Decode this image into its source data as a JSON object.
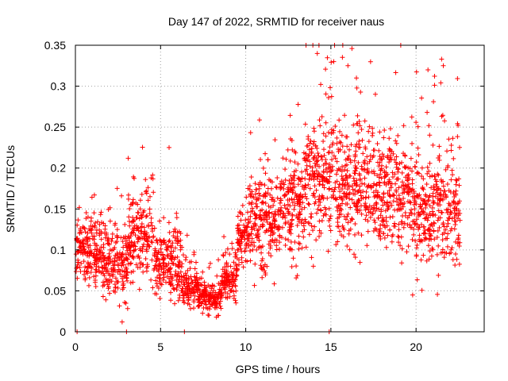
{
  "chart_data": {
    "type": "scatter",
    "title": "Day 147 of 2022, SRMTID for receiver naus",
    "xlabel": "GPS time / hours",
    "ylabel": "SRMTID / TECUs",
    "xlim": [
      0,
      24
    ],
    "ylim": [
      0,
      0.35
    ],
    "x_ticks": [
      0,
      5,
      10,
      15,
      20
    ],
    "x_tick_labels": [
      "0",
      "5",
      "10",
      "15",
      "20"
    ],
    "y_ticks": [
      0,
      0.05,
      0.1,
      0.15,
      0.2,
      0.25,
      0.3,
      0.35
    ],
    "y_tick_labels": [
      "0",
      "0.05",
      "0.1",
      "0.15",
      "0.2",
      "0.25",
      "0.3",
      "0.35"
    ],
    "grid": true,
    "marker": "+",
    "color": "#ff0000",
    "series": [
      {
        "name": "SRMTID",
        "segments": [
          {
            "t_start": 0.0,
            "t_end": 1.6,
            "mean": 0.1,
            "spread": 0.025
          },
          {
            "t_start": 1.6,
            "t_end": 3.1,
            "mean": 0.085,
            "spread": 0.028
          },
          {
            "t_start": 3.1,
            "t_end": 4.6,
            "mean": 0.12,
            "spread": 0.035
          },
          {
            "t_start": 4.6,
            "t_end": 6.2,
            "mean": 0.085,
            "spread": 0.03
          },
          {
            "t_start": 6.2,
            "t_end": 7.2,
            "mean": 0.055,
            "spread": 0.015
          },
          {
            "t_start": 7.2,
            "t_end": 8.6,
            "mean": 0.042,
            "spread": 0.012
          },
          {
            "t_start": 8.6,
            "t_end": 9.5,
            "mean": 0.06,
            "spread": 0.018
          },
          {
            "t_start": 9.5,
            "t_end": 10.2,
            "mean": 0.115,
            "spread": 0.02
          },
          {
            "t_start": 10.2,
            "t_end": 12.0,
            "mean": 0.135,
            "spread": 0.04
          },
          {
            "t_start": 12.0,
            "t_end": 13.5,
            "mean": 0.16,
            "spread": 0.045
          },
          {
            "t_start": 13.5,
            "t_end": 15.5,
            "mean": 0.185,
            "spread": 0.05
          },
          {
            "t_start": 15.5,
            "t_end": 17.5,
            "mean": 0.175,
            "spread": 0.05
          },
          {
            "t_start": 17.5,
            "t_end": 20.0,
            "mean": 0.165,
            "spread": 0.045
          },
          {
            "t_start": 20.0,
            "t_end": 22.6,
            "mean": 0.15,
            "spread": 0.05
          }
        ],
        "notable_points": [
          {
            "x": 14.3,
            "y": 0.35
          },
          {
            "x": 14.2,
            "y": 0.34
          },
          {
            "x": 16.0,
            "y": 0.325
          },
          {
            "x": 21.5,
            "y": 0.333
          },
          {
            "x": 21.6,
            "y": 0.325
          },
          {
            "x": 20.7,
            "y": 0.32
          },
          {
            "x": 16.5,
            "y": 0.31
          },
          {
            "x": 5.5,
            "y": 0.225
          },
          {
            "x": 3.1,
            "y": 0.212
          },
          {
            "x": 19.8,
            "y": 0.045
          },
          {
            "x": 8.4,
            "y": 0.02
          },
          {
            "x": 0.1,
            "y": 0.0
          },
          {
            "x": 3.0,
            "y": 0.0
          },
          {
            "x": 6.4,
            "y": 0.0
          },
          {
            "x": 14.9,
            "y": 0.0
          }
        ]
      }
    ]
  }
}
